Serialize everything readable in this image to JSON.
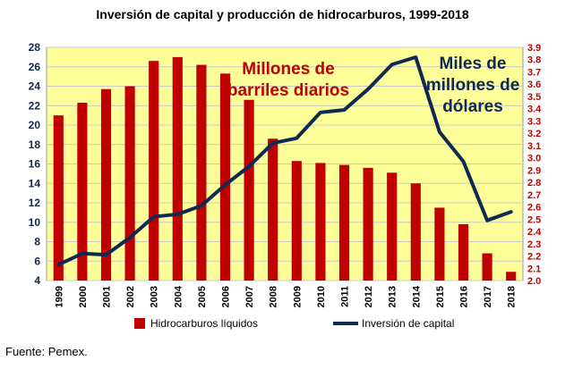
{
  "title": "Inversión de capital y producción de hidrocarburos, 1999-2018",
  "source": "Fuente: Pemex.",
  "chart_data": {
    "type": "bar-line-dual-axis",
    "categories": [
      "1999",
      "2000",
      "2001",
      "2002",
      "2003",
      "2004",
      "2005",
      "2006",
      "2007",
      "2008",
      "2009",
      "2010",
      "2011",
      "2012",
      "2013",
      "2014",
      "2015",
      "2016",
      "2017",
      "2018"
    ],
    "series": [
      {
        "name": "Hidrocarburos líquidos",
        "type": "bar",
        "axis": "left",
        "color": "#c00000",
        "values": [
          21.0,
          22.3,
          23.7,
          24.0,
          26.6,
          27.0,
          26.2,
          25.3,
          22.6,
          18.6,
          16.3,
          16.1,
          15.9,
          15.6,
          15.1,
          14.0,
          11.5,
          9.8,
          6.8,
          4.9
        ]
      },
      {
        "name": "Inversión de capital",
        "type": "line",
        "axis": "right",
        "color": "#0e2a52",
        "values": [
          2.13,
          2.22,
          2.21,
          2.35,
          2.52,
          2.54,
          2.61,
          2.78,
          2.93,
          3.12,
          3.16,
          3.37,
          3.39,
          3.56,
          3.76,
          3.82,
          3.21,
          2.97,
          2.49,
          2.56
        ]
      }
    ],
    "left_axis": {
      "min": 4,
      "max": 28,
      "step": 2,
      "color": "#0e2a52",
      "ticks": [
        "4",
        "6",
        "8",
        "10",
        "12",
        "14",
        "16",
        "18",
        "20",
        "22",
        "24",
        "26",
        "28"
      ]
    },
    "right_axis": {
      "min": 2.0,
      "max": 3.9,
      "step": 0.1,
      "color": "#c00000",
      "ticks": [
        "2.0",
        "2.1",
        "2.2",
        "2.3",
        "2.4",
        "2.5",
        "2.6",
        "2.7",
        "2.8",
        "2.9",
        "3.0",
        "3.1",
        "3.2",
        "3.3",
        "3.4",
        "3.5",
        "3.6",
        "3.7",
        "3.8",
        "3.9"
      ]
    },
    "annotations": {
      "bars_label": [
        "Millones de",
        "barriles diarios"
      ],
      "line_label": [
        "Miles de",
        "millones de",
        "dólares"
      ]
    },
    "plot_background": "#ffff99",
    "grid": true,
    "legend_position": "bottom"
  }
}
